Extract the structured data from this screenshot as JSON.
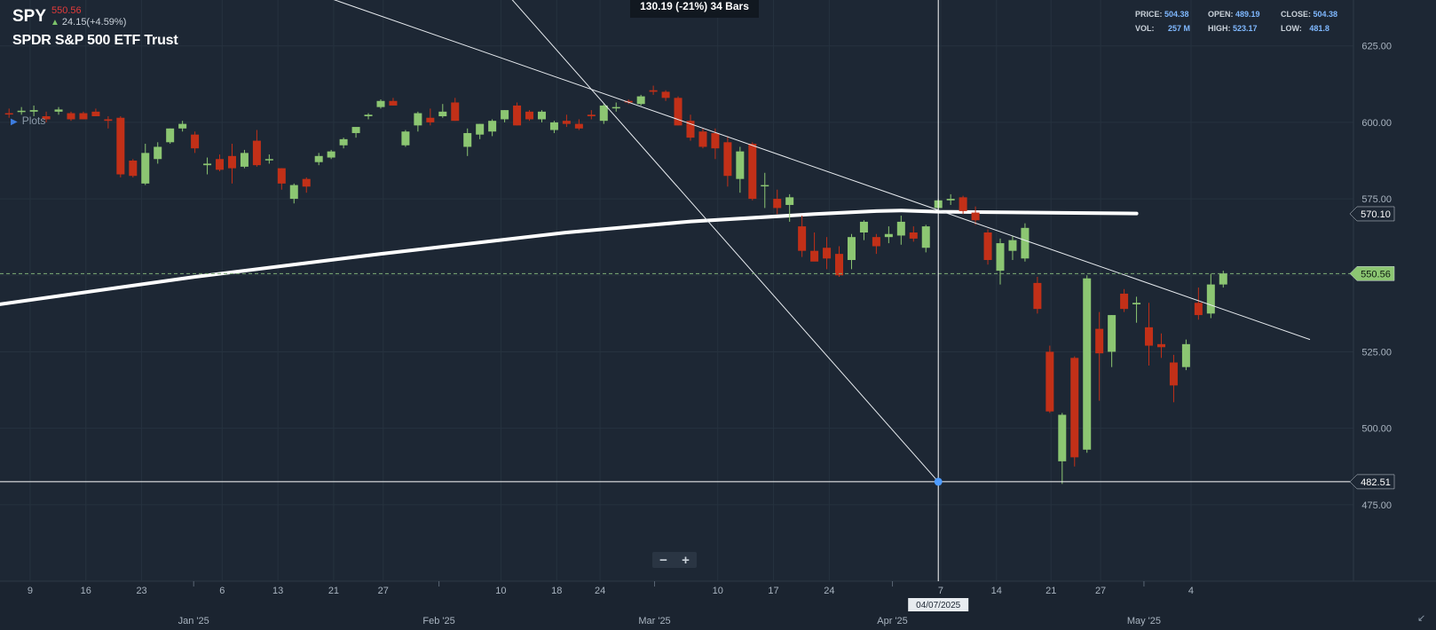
{
  "header": {
    "symbol": "SPY",
    "last_price": "550.56",
    "change": "24.15(+4.59%)",
    "name": "SPDR S&P 500 ETF Trust",
    "plots_label": "Plots"
  },
  "measure_label": "130.19 (-21%) 34 Bars",
  "ohlc": {
    "price_label": "PRICE:",
    "price": "504.38",
    "open_label": "OPEN:",
    "open": "489.19",
    "close_label": "CLOSE:",
    "close": "504.38",
    "vol_label": "VOL:",
    "vol": "257 M",
    "high_label": "HIGH:",
    "high": "523.17",
    "low_label": "LOW:",
    "low": "481.8"
  },
  "zoom": {
    "minus": "−",
    "plus": "+"
  },
  "colors": {
    "background": "#1d2734",
    "up": "#8cc672",
    "down": "#c23018",
    "grid": "#26323f",
    "text": "#c9d1d9",
    "accent": "#7fb8ff",
    "price_tag": "#8cc672"
  },
  "chart_data": {
    "type": "candlestick",
    "symbol": "SPY",
    "ylim": [
      450,
      640
    ],
    "y_ticks": [
      "625.00",
      "600.00",
      "575.00",
      "550.00",
      "525.00",
      "500.00",
      "475.00"
    ],
    "y_tick_values": [
      625,
      600,
      575,
      550,
      525,
      500,
      475
    ],
    "x_ticks": [
      {
        "label": "9",
        "bar": 1.7
      },
      {
        "label": "16",
        "bar": 6.2
      },
      {
        "label": "23",
        "bar": 10.7
      },
      {
        "label": "6",
        "bar": 17.2
      },
      {
        "label": "13",
        "bar": 21.7
      },
      {
        "label": "21",
        "bar": 26.2
      },
      {
        "label": "27",
        "bar": 30.2
      },
      {
        "label": "10",
        "bar": 39.7
      },
      {
        "label": "18",
        "bar": 44.2
      },
      {
        "label": "24",
        "bar": 47.7
      },
      {
        "label": "10",
        "bar": 57.2
      },
      {
        "label": "17",
        "bar": 61.7
      },
      {
        "label": "24",
        "bar": 66.2
      },
      {
        "label": "7",
        "bar": 75.2
      },
      {
        "label": "14",
        "bar": 79.7
      },
      {
        "label": "21",
        "bar": 84.1
      },
      {
        "label": "27",
        "bar": 88.1
      },
      {
        "label": "4",
        "bar": 95.4
      }
    ],
    "month_labels": [
      {
        "label": "Jan '25",
        "bar": 14.9
      },
      {
        "label": "Feb '25",
        "bar": 34.7
      },
      {
        "label": "Mar '25",
        "bar": 52.1
      },
      {
        "label": "Apr '25",
        "bar": 71.3
      },
      {
        "label": "May '25",
        "bar": 91.6
      }
    ],
    "candles": [
      {
        "o": 603.0,
        "h": 604.5,
        "l": 601.5,
        "c": 602.7
      },
      {
        "o": 603.5,
        "h": 605.0,
        "l": 602.5,
        "c": 603.8
      },
      {
        "o": 603.5,
        "h": 605.5,
        "l": 602.0,
        "c": 604.0
      },
      {
        "o": 602.0,
        "h": 603.5,
        "l": 600.0,
        "c": 601.0
      },
      {
        "o": 603.5,
        "h": 605.0,
        "l": 602.5,
        "c": 604.2
      },
      {
        "o": 603.0,
        "h": 603.5,
        "l": 600.5,
        "c": 601.0
      },
      {
        "o": 603.0,
        "h": 603.5,
        "l": 601.0,
        "c": 601.0
      },
      {
        "o": 603.5,
        "h": 604.5,
        "l": 602.0,
        "c": 602.0
      },
      {
        "o": 601.0,
        "h": 602.0,
        "l": 598.0,
        "c": 600.5
      },
      {
        "o": 601.5,
        "h": 602.0,
        "l": 582.0,
        "c": 583.0
      },
      {
        "o": 587.5,
        "h": 588.0,
        "l": 582.0,
        "c": 582.5
      },
      {
        "o": 580.0,
        "h": 593.0,
        "l": 579.5,
        "c": 590.0
      },
      {
        "o": 588.0,
        "h": 593.5,
        "l": 586.5,
        "c": 592.0
      },
      {
        "o": 593.5,
        "h": 598.0,
        "l": 593.0,
        "c": 598.0
      },
      {
        "o": 598.0,
        "h": 600.5,
        "l": 597.0,
        "c": 599.5
      },
      {
        "o": 596.0,
        "h": 597.0,
        "l": 590.0,
        "c": 591.5
      },
      {
        "o": 586.0,
        "h": 588.5,
        "l": 583.0,
        "c": 586.5
      },
      {
        "o": 588.0,
        "h": 589.5,
        "l": 584.0,
        "c": 584.5
      },
      {
        "o": 589.0,
        "h": 593.0,
        "l": 580.0,
        "c": 585.0
      },
      {
        "o": 585.5,
        "h": 591.0,
        "l": 585.0,
        "c": 590.0
      },
      {
        "o": 594.0,
        "h": 597.5,
        "l": 585.5,
        "c": 586.0
      },
      {
        "o": 588.0,
        "h": 589.5,
        "l": 586.5,
        "c": 588.0
      },
      {
        "o": 585.0,
        "h": 585.0,
        "l": 578.0,
        "c": 580.0
      },
      {
        "o": 575.0,
        "h": 580.0,
        "l": 573.5,
        "c": 579.5
      },
      {
        "o": 581.5,
        "h": 582.0,
        "l": 577.0,
        "c": 579.0
      },
      {
        "o": 587.0,
        "h": 590.0,
        "l": 586.0,
        "c": 589.0
      },
      {
        "o": 588.5,
        "h": 591.0,
        "l": 588.0,
        "c": 590.5
      },
      {
        "o": 592.5,
        "h": 595.0,
        "l": 591.5,
        "c": 594.5
      },
      {
        "o": 596.5,
        "h": 598.0,
        "l": 595.0,
        "c": 598.5
      },
      {
        "o": 602.0,
        "h": 603.0,
        "l": 601.0,
        "c": 602.5
      },
      {
        "o": 605.0,
        "h": 607.5,
        "l": 604.5,
        "c": 607.0
      },
      {
        "o": 607.0,
        "h": 608.0,
        "l": 605.5,
        "c": 605.5
      },
      {
        "o": 592.5,
        "h": 597.5,
        "l": 592.0,
        "c": 597.0
      },
      {
        "o": 599.0,
        "h": 603.5,
        "l": 597.0,
        "c": 603.0
      },
      {
        "o": 601.5,
        "h": 604.5,
        "l": 599.0,
        "c": 600.0
      },
      {
        "o": 602.0,
        "h": 606.0,
        "l": 601.5,
        "c": 603.5
      },
      {
        "o": 606.5,
        "h": 608.0,
        "l": 600.5,
        "c": 600.5
      },
      {
        "o": 592.0,
        "h": 598.0,
        "l": 589.0,
        "c": 596.5
      },
      {
        "o": 596.0,
        "h": 599.5,
        "l": 594.5,
        "c": 599.5
      },
      {
        "o": 597.0,
        "h": 601.0,
        "l": 595.5,
        "c": 600.5
      },
      {
        "o": 601.0,
        "h": 604.0,
        "l": 600.0,
        "c": 604.0
      },
      {
        "o": 605.5,
        "h": 606.5,
        "l": 599.0,
        "c": 599.0
      },
      {
        "o": 603.5,
        "h": 604.0,
        "l": 600.5,
        "c": 601.0
      },
      {
        "o": 601.0,
        "h": 604.0,
        "l": 600.0,
        "c": 603.5
      },
      {
        "o": 597.5,
        "h": 600.5,
        "l": 596.5,
        "c": 600.0
      },
      {
        "o": 600.5,
        "h": 602.5,
        "l": 598.5,
        "c": 599.5
      },
      {
        "o": 599.5,
        "h": 601.0,
        "l": 597.5,
        "c": 598.0
      },
      {
        "o": 602.5,
        "h": 604.0,
        "l": 601.0,
        "c": 602.0
      },
      {
        "o": 600.5,
        "h": 606.0,
        "l": 599.5,
        "c": 605.5
      },
      {
        "o": 605.0,
        "h": 606.5,
        "l": 603.5,
        "c": 605.0
      },
      {
        "o": 607.0,
        "h": 607.5,
        "l": 606.0,
        "c": 606.5
      },
      {
        "o": 606.0,
        "h": 609.0,
        "l": 605.5,
        "c": 608.5
      },
      {
        "o": 610.5,
        "h": 612.0,
        "l": 609.0,
        "c": 610.0
      },
      {
        "o": 610.0,
        "h": 610.5,
        "l": 607.0,
        "c": 608.0
      },
      {
        "o": 608.0,
        "h": 608.5,
        "l": 599.0,
        "c": 599.0
      },
      {
        "o": 600.5,
        "h": 602.5,
        "l": 594.0,
        "c": 595.0
      },
      {
        "o": 597.0,
        "h": 598.0,
        "l": 591.5,
        "c": 592.0
      },
      {
        "o": 596.5,
        "h": 598.0,
        "l": 588.0,
        "c": 591.5
      },
      {
        "o": 593.5,
        "h": 595.5,
        "l": 579.0,
        "c": 582.5
      },
      {
        "o": 581.5,
        "h": 592.0,
        "l": 577.0,
        "c": 590.5
      },
      {
        "o": 593.0,
        "h": 593.5,
        "l": 574.5,
        "c": 575.0
      },
      {
        "o": 579.5,
        "h": 583.5,
        "l": 572.0,
        "c": 579.5
      },
      {
        "o": 575.0,
        "h": 578.0,
        "l": 570.0,
        "c": 572.0
      },
      {
        "o": 573.0,
        "h": 576.5,
        "l": 567.5,
        "c": 575.5
      },
      {
        "o": 566.0,
        "h": 569.5,
        "l": 556.0,
        "c": 558.0
      },
      {
        "o": 558.0,
        "h": 564.0,
        "l": 555.0,
        "c": 554.5
      },
      {
        "o": 559.0,
        "h": 562.5,
        "l": 552.0,
        "c": 555.5
      },
      {
        "o": 557.0,
        "h": 559.5,
        "l": 549.5,
        "c": 550.0
      },
      {
        "o": 555.0,
        "h": 563.5,
        "l": 552.0,
        "c": 562.5
      },
      {
        "o": 564.0,
        "h": 568.0,
        "l": 561.5,
        "c": 567.5
      },
      {
        "o": 562.5,
        "h": 563.5,
        "l": 557.0,
        "c": 559.5
      },
      {
        "o": 562.5,
        "h": 566.0,
        "l": 560.5,
        "c": 563.5
      },
      {
        "o": 563.0,
        "h": 569.5,
        "l": 560.0,
        "c": 567.5
      },
      {
        "o": 564.0,
        "h": 566.0,
        "l": 561.0,
        "c": 562.0
      },
      {
        "o": 559.0,
        "h": 566.5,
        "l": 557.5,
        "c": 566.0
      },
      {
        "o": 572.0,
        "h": 575.0,
        "l": 571.0,
        "c": 574.5
      },
      {
        "o": 574.5,
        "h": 576.5,
        "l": 573.0,
        "c": 575.0
      },
      {
        "o": 575.5,
        "h": 576.0,
        "l": 570.0,
        "c": 571.0
      },
      {
        "o": 570.5,
        "h": 572.5,
        "l": 566.5,
        "c": 568.0
      },
      {
        "o": 564.0,
        "h": 565.0,
        "l": 553.5,
        "c": 555.0
      },
      {
        "o": 551.5,
        "h": 562.0,
        "l": 547.0,
        "c": 560.5
      },
      {
        "o": 558.0,
        "h": 563.0,
        "l": 555.0,
        "c": 561.5
      },
      {
        "o": 555.5,
        "h": 567.0,
        "l": 554.5,
        "c": 565.5
      },
      {
        "o": 547.5,
        "h": 549.5,
        "l": 537.5,
        "c": 539.0
      },
      {
        "o": 525.0,
        "h": 527.0,
        "l": 505.0,
        "c": 505.5
      },
      {
        "o": 489.2,
        "h": 505.0,
        "l": 481.8,
        "c": 504.4
      },
      {
        "o": 523.0,
        "h": 523.5,
        "l": 487.5,
        "c": 490.5
      },
      {
        "o": 493.0,
        "h": 550.0,
        "l": 492.0,
        "c": 549.0
      },
      {
        "o": 532.5,
        "h": 538.0,
        "l": 509.0,
        "c": 524.5
      },
      {
        "o": 525.0,
        "h": 537.0,
        "l": 520.0,
        "c": 537.0
      },
      {
        "o": 544.0,
        "h": 545.5,
        "l": 538.0,
        "c": 539.0
      },
      {
        "o": 540.5,
        "h": 543.0,
        "l": 534.5,
        "c": 541.0
      },
      {
        "o": 533.0,
        "h": 541.0,
        "l": 520.5,
        "c": 527.0
      },
      {
        "o": 527.5,
        "h": 531.0,
        "l": 523.0,
        "c": 526.5
      },
      {
        "o": 521.5,
        "h": 524.0,
        "l": 508.5,
        "c": 514.0
      },
      {
        "o": 520.0,
        "h": 529.0,
        "l": 519.0,
        "c": 527.5
      },
      {
        "o": 541.0,
        "h": 546.0,
        "l": 535.5,
        "c": 537.0
      },
      {
        "o": 537.5,
        "h": 550.5,
        "l": 536.0,
        "c": 547.0
      },
      {
        "o": 547.0,
        "h": 551.5,
        "l": 546.0,
        "c": 550.6
      }
    ],
    "moving_average": [
      {
        "bar": -1.0,
        "y": 540.4
      },
      {
        "bar": 15.0,
        "y": 549.5
      },
      {
        "bar": 30.0,
        "y": 557.0
      },
      {
        "bar": 45.0,
        "y": 564.0
      },
      {
        "bar": 55.0,
        "y": 567.6
      },
      {
        "bar": 65.0,
        "y": 570.0
      },
      {
        "bar": 70.0,
        "y": 571.0
      },
      {
        "bar": 72.0,
        "y": 571.2
      },
      {
        "bar": 75.0,
        "y": 570.8
      },
      {
        "bar": 85.0,
        "y": 570.4
      },
      {
        "bar": 91.0,
        "y": 570.2
      }
    ],
    "trendlines": [
      {
        "bar1": 47.0,
        "y1": 610.8,
        "bar2": 105.0,
        "y2": 529.0
      },
      {
        "bar1": 47.0,
        "y1": 610.8,
        "bar2": 75.0,
        "y2": 482.5
      }
    ],
    "annotations": {
      "last_price_value": 550.56,
      "last_price_label": "550.56",
      "ma_value": 570.1,
      "ma_label": "570.10",
      "crosshair_value": 482.51,
      "crosshair_label": "482.51",
      "crosshair_bar": 75.0,
      "crosshair_date": "04/07/2025"
    },
    "grid": true
  }
}
